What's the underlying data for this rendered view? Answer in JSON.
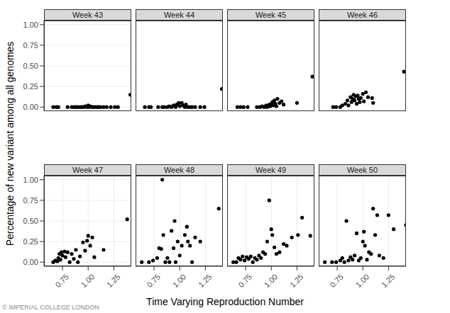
{
  "chart_data": {
    "type": "scatter",
    "xlabel": "Time Varying Reproduction Number",
    "ylabel": "Percentage of new variant among all genomes",
    "source": "© IMPERIAL COLLEGE LONDON",
    "xlim": [
      0.57,
      1.42
    ],
    "ylim": [
      -0.05,
      1.05
    ],
    "xticks": [
      0.75,
      {
        "value": 1,
        "label": "1.00"
      },
      1.25
    ],
    "yticks": [
      {
        "value": 0,
        "label": "0.00"
      },
      0.25,
      {
        "value": 0.5,
        "label": "0.50"
      },
      0.75,
      {
        "value": 1,
        "label": "1.00"
      }
    ],
    "grid": true,
    "color": "#000000",
    "marker": "circle",
    "panels": [
      {
        "title": "Week 43",
        "x": [
          0.66,
          0.69,
          0.71,
          0.8,
          0.84,
          0.86,
          0.88,
          0.89,
          0.91,
          0.93,
          0.94,
          0.96,
          0.97,
          0.99,
          1.0,
          1.01,
          1.02,
          1.04,
          1.05,
          1.07,
          1.09,
          1.1,
          1.12,
          1.15,
          1.18,
          1.22,
          1.26,
          1.29,
          1.41
        ],
        "y": [
          0,
          0,
          0,
          0,
          0,
          0,
          0,
          0,
          0,
          0,
          0,
          0,
          0.01,
          0,
          0.02,
          0,
          0.01,
          0,
          0,
          0,
          0,
          0,
          0,
          0,
          0,
          0,
          0,
          0,
          0.15
        ]
      },
      {
        "title": "Week 44",
        "x": [
          0.66,
          0.7,
          0.72,
          0.79,
          0.83,
          0.85,
          0.88,
          0.9,
          0.92,
          0.94,
          0.96,
          0.97,
          0.99,
          1.0,
          1.02,
          1.03,
          1.05,
          1.06,
          1.08,
          1.1,
          1.12,
          1.15,
          1.2,
          1.24,
          1.41
        ],
        "y": [
          0,
          0,
          0,
          0,
          0,
          0,
          0,
          0.01,
          0,
          0.02,
          0,
          0.03,
          0.05,
          0.01,
          0.05,
          0.02,
          0,
          0.03,
          0,
          0,
          0,
          0,
          0,
          0,
          0.22
        ]
      },
      {
        "title": "Week 45",
        "x": [
          0.67,
          0.7,
          0.73,
          0.77,
          0.86,
          0.89,
          0.91,
          0.93,
          0.95,
          0.96,
          0.98,
          0.99,
          1.0,
          1.01,
          1.02,
          1.03,
          1.04,
          1.05,
          1.06,
          1.08,
          1.1,
          1.12,
          1.25,
          1.4
        ],
        "y": [
          0,
          0,
          0,
          0,
          0,
          0,
          0.01,
          0,
          0.02,
          0,
          0.03,
          0.01,
          0.04,
          0.06,
          0.02,
          0.08,
          0.04,
          0.01,
          0.1,
          0.05,
          0.07,
          0.03,
          0.05,
          0.37
        ]
      },
      {
        "title": "Week 46",
        "x": [
          0.71,
          0.74,
          0.78,
          0.8,
          0.83,
          0.85,
          0.86,
          0.88,
          0.89,
          0.9,
          0.91,
          0.92,
          0.93,
          0.94,
          0.95,
          0.96,
          0.97,
          0.98,
          1.0,
          1.01,
          1.03,
          1.05,
          1.09,
          1.1,
          1.4
        ],
        "y": [
          0,
          0,
          0,
          0.02,
          0.04,
          0.08,
          0.02,
          0.12,
          0.06,
          0.1,
          0.15,
          0.08,
          0.13,
          0.04,
          0.14,
          0.1,
          0.06,
          0.11,
          0.16,
          0.07,
          0.18,
          0.12,
          0.11,
          0.05,
          0.43
        ]
      },
      {
        "title": "Week 47",
        "x": [
          0.66,
          0.68,
          0.7,
          0.71,
          0.72,
          0.73,
          0.74,
          0.75,
          0.77,
          0.78,
          0.8,
          0.82,
          0.84,
          0.86,
          0.88,
          0.9,
          0.92,
          0.95,
          0.97,
          0.99,
          1.0,
          1.02,
          1.04,
          1.06,
          1.15,
          1.38
        ],
        "y": [
          0,
          0.02,
          0.01,
          0.05,
          0.1,
          0.03,
          0.12,
          0.08,
          0.13,
          0.06,
          0.12,
          0,
          0.1,
          0.04,
          0.15,
          0,
          0.07,
          0.24,
          0.14,
          0.26,
          0.32,
          0.2,
          0.3,
          0.06,
          0.15,
          0.52
        ]
      },
      {
        "title": "Week 48",
        "x": [
          0.63,
          0.7,
          0.74,
          0.78,
          0.8,
          0.82,
          0.83,
          0.84,
          0.86,
          0.88,
          0.9,
          0.92,
          0.94,
          0.95,
          0.96,
          0.98,
          1.0,
          1.02,
          1.05,
          1.07,
          1.08,
          1.1,
          1.12,
          1.15,
          1.2,
          1.38
        ],
        "y": [
          0,
          0,
          0.02,
          0.05,
          0.17,
          0.16,
          1.0,
          0.33,
          0,
          0.05,
          0,
          0.38,
          0.17,
          0.5,
          0,
          0.25,
          0.08,
          0.2,
          0.33,
          0.43,
          0.25,
          0.2,
          0,
          0.3,
          0.25,
          0.65
        ]
      },
      {
        "title": "Week 49",
        "x": [
          0.63,
          0.66,
          0.68,
          0.7,
          0.72,
          0.74,
          0.76,
          0.78,
          0.8,
          0.82,
          0.84,
          0.86,
          0.88,
          0.9,
          0.92,
          0.94,
          0.96,
          0.98,
          1.0,
          1.01,
          1.03,
          1.05,
          1.08,
          1.12,
          1.15,
          1.2,
          1.26,
          1.3,
          1.38
        ],
        "y": [
          0,
          0,
          0.05,
          0.03,
          0.07,
          0.02,
          0.06,
          0.04,
          0.07,
          0,
          0.05,
          0.03,
          0.08,
          0.05,
          0.12,
          0.1,
          0.25,
          0.75,
          0.4,
          0.33,
          0.18,
          0.1,
          0.12,
          0.22,
          0.2,
          0.3,
          0.33,
          0.54,
          0.32
        ]
      },
      {
        "title": "Week 50",
        "x": [
          0.63,
          0.7,
          0.74,
          0.78,
          0.8,
          0.82,
          0.84,
          0.86,
          0.88,
          0.9,
          0.92,
          0.94,
          0.96,
          0.98,
          1.0,
          1.01,
          1.02,
          1.04,
          1.06,
          1.08,
          1.1,
          1.12,
          1.14,
          1.16,
          1.2,
          1.25,
          1.3,
          1.42
        ],
        "y": [
          0,
          0,
          0,
          0.02,
          0.05,
          0,
          0.5,
          0.02,
          0.06,
          0.03,
          0.08,
          0.35,
          0.02,
          0.05,
          0.25,
          0.37,
          0.2,
          0.03,
          0.12,
          0.1,
          0.65,
          0.33,
          0.57,
          0.08,
          0.05,
          0.57,
          0.4,
          0.45
        ]
      }
    ]
  }
}
